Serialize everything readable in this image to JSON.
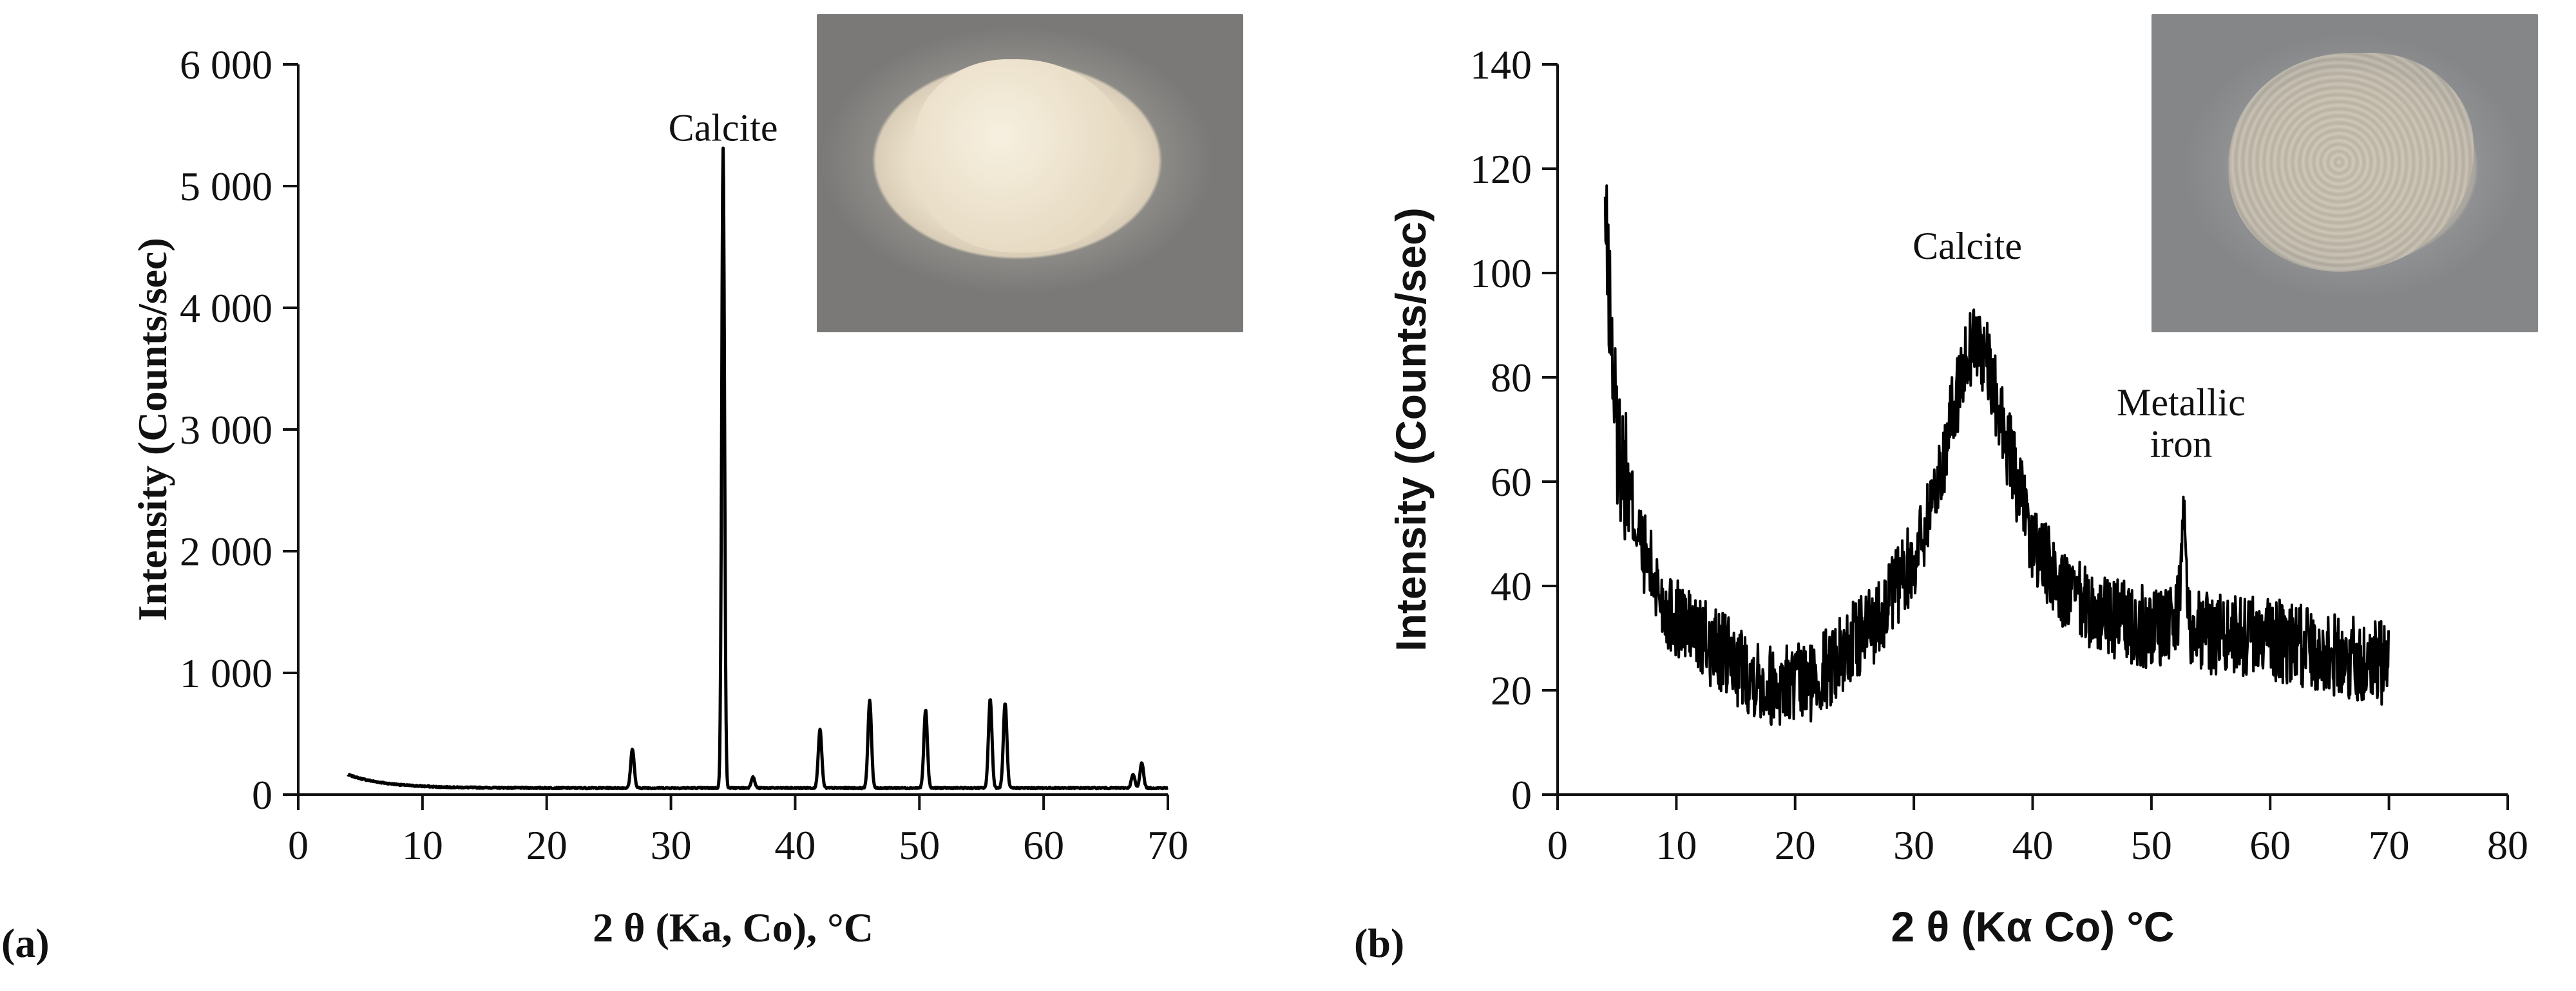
{
  "chart_data": [
    {
      "panel_label": "(a)",
      "type": "line",
      "xlabel": "2 θ (Ka, Co), °C",
      "ylabel": "Intensity (Counts/sec)",
      "xlim": [
        0,
        70
      ],
      "ylim": [
        0,
        6000
      ],
      "x_ticks": [
        0,
        10,
        20,
        30,
        40,
        50,
        60,
        70
      ],
      "y_ticks": [
        0,
        1000,
        2000,
        3000,
        4000,
        5000,
        6000
      ],
      "y_tick_labels": [
        "0",
        "1 000",
        "2 000",
        "3 000",
        "4 000",
        "5 000",
        "6 000"
      ],
      "grid": false,
      "background": 120,
      "peaks": [
        {
          "x": 26.9,
          "y": 360
        },
        {
          "x": 34.2,
          "y": 5300
        },
        {
          "x": 36.6,
          "y": 130
        },
        {
          "x": 42.0,
          "y": 520
        },
        {
          "x": 46.0,
          "y": 760
        },
        {
          "x": 50.5,
          "y": 680
        },
        {
          "x": 55.7,
          "y": 770
        },
        {
          "x": 56.9,
          "y": 740
        },
        {
          "x": 67.2,
          "y": 150
        },
        {
          "x": 67.9,
          "y": 250
        }
      ],
      "annotations": [
        {
          "text": "Calcite",
          "x": 34.2,
          "y": 5300
        }
      ],
      "inset_photo": "powder-photo-light"
    },
    {
      "panel_label": "(b)",
      "type": "line",
      "xlabel": "2 θ (Kα Co) °C",
      "ylabel": "Intensity (Counts/sec)",
      "xlim": [
        0,
        80
      ],
      "ylim": [
        0,
        140
      ],
      "x_ticks": [
        0,
        10,
        20,
        30,
        40,
        50,
        60,
        70,
        80
      ],
      "y_ticks": [
        0,
        20,
        40,
        60,
        80,
        100,
        120,
        140
      ],
      "y_tick_labels": [
        "0",
        "20",
        "40",
        "60",
        "80",
        "100",
        "120",
        "140"
      ],
      "grid": false,
      "series_profile": {
        "x": [
          4,
          5,
          7,
          9,
          12,
          15,
          18,
          21,
          24,
          27,
          30,
          32,
          34,
          35,
          36,
          38,
          40,
          43,
          46,
          50,
          52,
          55,
          60,
          65,
          70
        ],
        "y": [
          110,
          68,
          48,
          36,
          30,
          25,
          21,
          21,
          27,
          34,
          45,
          60,
          80,
          88,
          84,
          66,
          48,
          38,
          34,
          32,
          34,
          31,
          30,
          27,
          25
        ]
      },
      "peaks": [
        {
          "x": 52.7,
          "y": 60
        }
      ],
      "noise_amplitude": 8,
      "annotations": [
        {
          "text": "Calcite",
          "x": 34.5,
          "y": 101
        },
        {
          "text": "Metallic",
          "x": 52.5,
          "y": 71
        },
        {
          "text": "iron",
          "x": 52.5,
          "y": 63
        }
      ],
      "inset_photo": "powder-photo-grey"
    }
  ]
}
